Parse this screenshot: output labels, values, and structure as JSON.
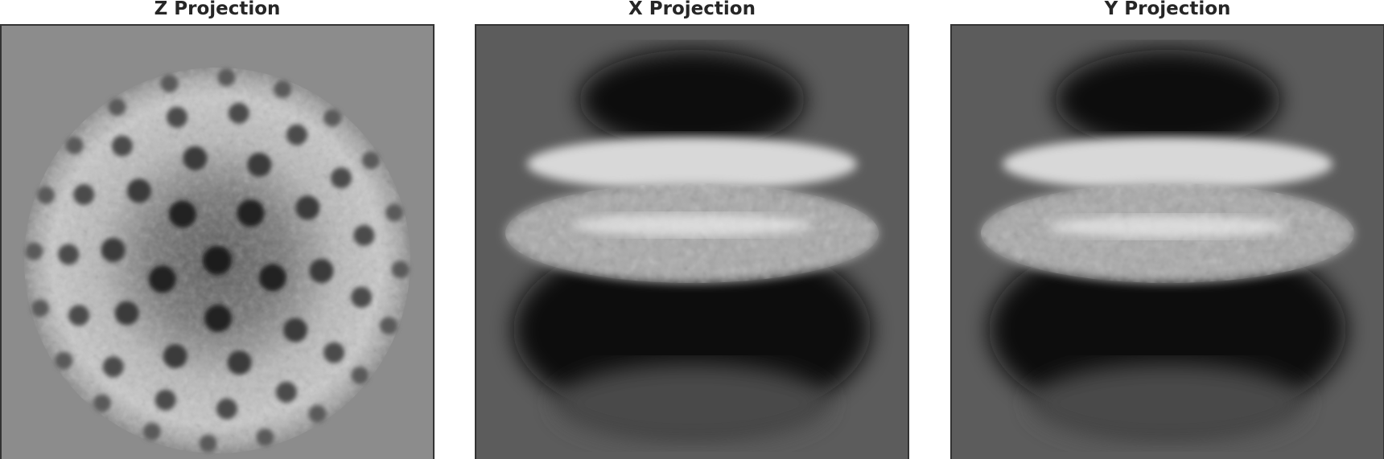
{
  "panels": [
    {
      "id": "z",
      "title": "Z Projection",
      "background": "#8c8c8c"
    },
    {
      "id": "x",
      "title": "X Projection",
      "background": "#5c5c5c"
    },
    {
      "id": "y",
      "title": "Y Projection",
      "background": "#5c5c5c"
    }
  ],
  "colors": {
    "frame": "#333333",
    "title": "#262626",
    "page": "#ffffff"
  }
}
